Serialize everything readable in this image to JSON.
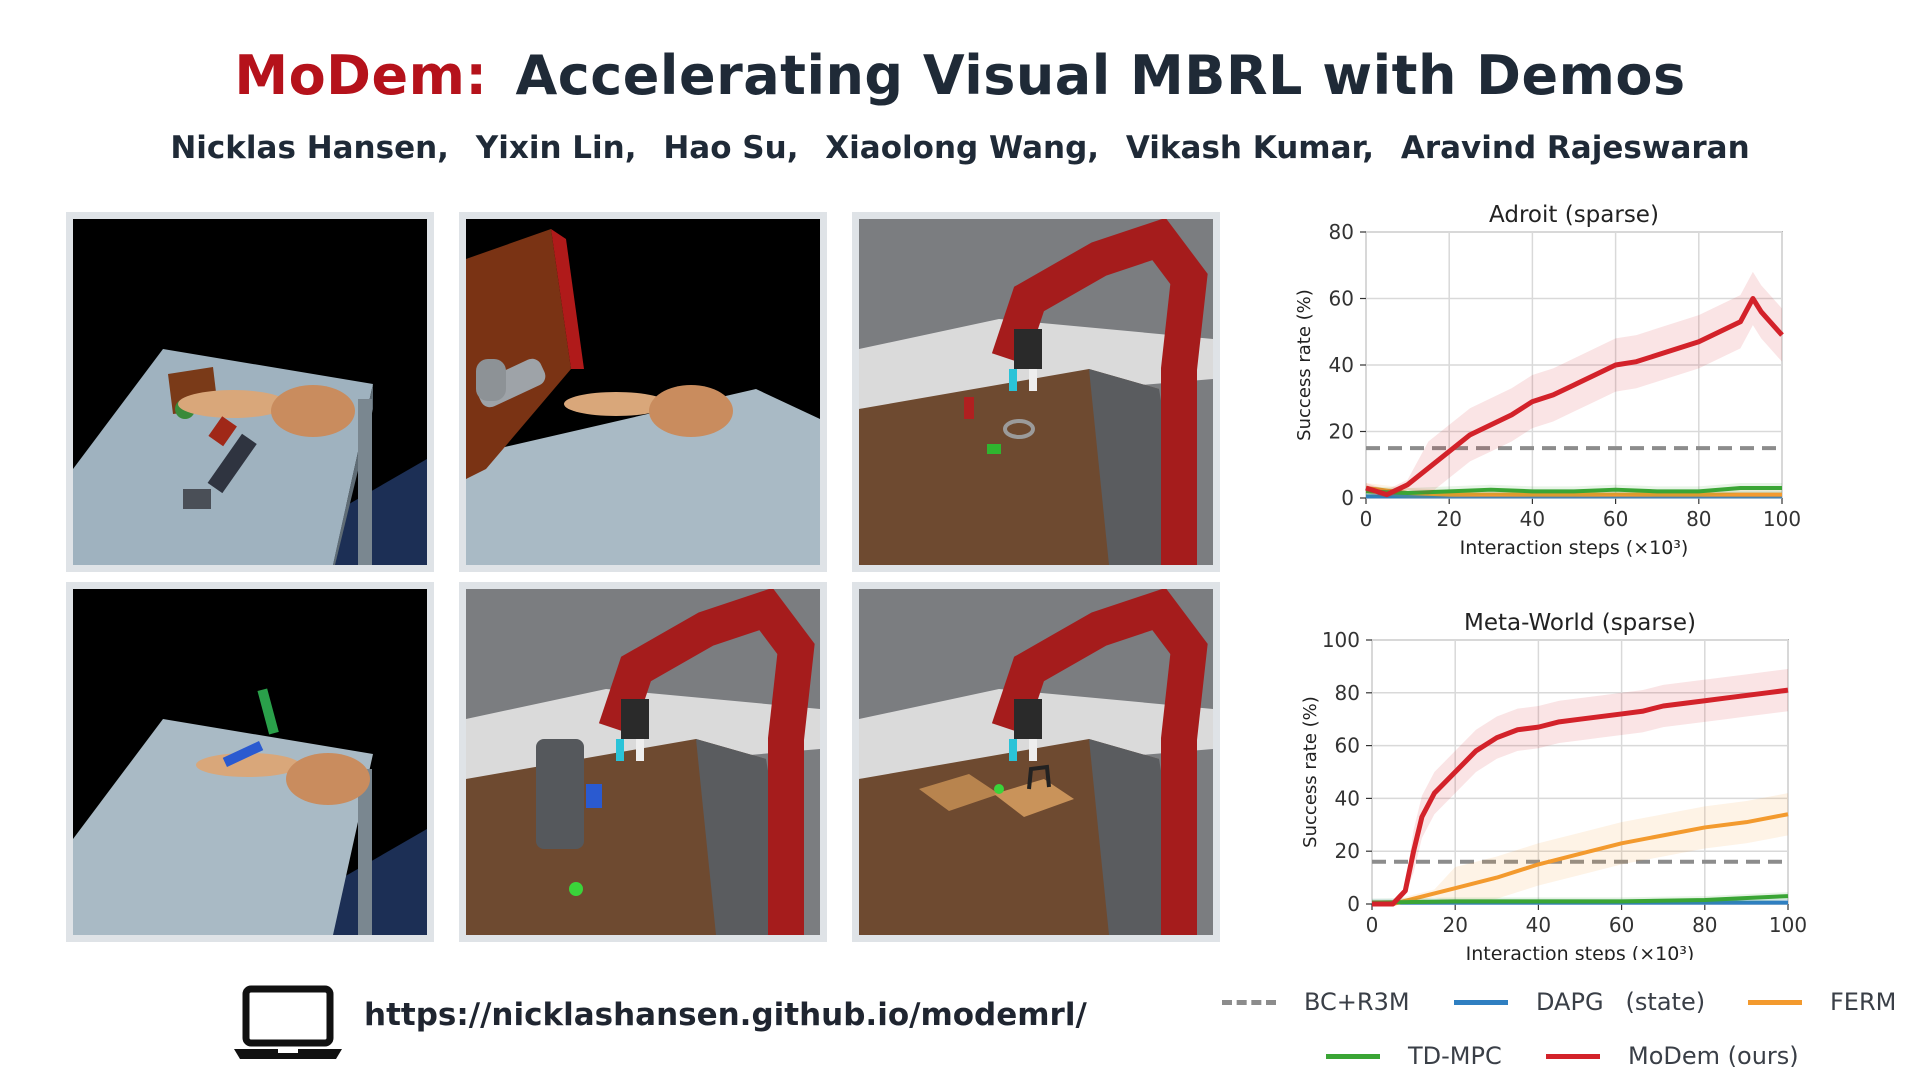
{
  "title": {
    "brand": "MoDem:",
    "rest": "Accelerating Visual MBRL with Demos"
  },
  "authors": [
    "Nicklas Hansen,",
    "Yixin Lin,",
    "Hao Su,",
    "Xiaolong Wang,",
    "Vikash Kumar,",
    "Aravind Rajeswaran"
  ],
  "link": {
    "url": "https://nicklashansen.github.io/modemrl/",
    "icon": "laptop-icon"
  },
  "legend": [
    {
      "label": "BC+R3M",
      "color": "#8c8c8c",
      "dash": true
    },
    {
      "label": "DAPG",
      "color": "#2f7fc1",
      "dash": false,
      "suffix": "(state)"
    },
    {
      "label": "FERM",
      "color": "#f39a2e",
      "dash": false
    },
    {
      "label": "TD-MPC",
      "color": "#3aa535",
      "dash": false
    },
    {
      "label": "MoDem (ours)",
      "color": "#d3222a",
      "dash": false
    }
  ],
  "tiles": [
    {
      "scene": "adroit-hammer"
    },
    {
      "scene": "adroit-door"
    },
    {
      "scene": "metaworld-peg"
    },
    {
      "scene": "adroit-pen"
    },
    {
      "scene": "metaworld-coffee"
    },
    {
      "scene": "metaworld-bin"
    }
  ],
  "chart_data": [
    {
      "type": "line",
      "title": "Adroit (sparse)",
      "xlabel": "Interaction steps (×10³)",
      "ylabel": "Success rate (%)",
      "xlim": [
        0,
        100
      ],
      "ylim": [
        0,
        80
      ],
      "xticks": [
        0,
        20,
        40,
        60,
        80,
        100
      ],
      "yticks": [
        0,
        20,
        40,
        60,
        80
      ],
      "grid": true,
      "series": [
        {
          "name": "BC+R3M",
          "x": [
            0,
            100
          ],
          "y": [
            15,
            15
          ],
          "color": "#8c8c8c",
          "dash": true
        },
        {
          "name": "DAPG",
          "x": [
            0,
            100
          ],
          "y": [
            0.5,
            0.5
          ],
          "color": "#2f7fc1"
        },
        {
          "name": "FERM",
          "x": [
            0,
            10,
            20,
            40,
            60,
            80,
            100
          ],
          "y": [
            3,
            1.5,
            1,
            1,
            1,
            1,
            1
          ],
          "color": "#f39a2e"
        },
        {
          "name": "TD-MPC",
          "x": [
            0,
            10,
            20,
            30,
            40,
            50,
            60,
            70,
            80,
            90,
            100
          ],
          "y": [
            2,
            1.5,
            2,
            2.5,
            2,
            2,
            2.5,
            2,
            2,
            3,
            3
          ],
          "color": "#3aa535"
        },
        {
          "name": "MoDem (ours)",
          "x": [
            0,
            5,
            10,
            15,
            20,
            25,
            30,
            35,
            40,
            45,
            50,
            55,
            60,
            65,
            70,
            75,
            80,
            85,
            90,
            93,
            95,
            100
          ],
          "y": [
            3,
            1,
            4,
            9,
            14,
            19,
            22,
            25,
            29,
            31,
            34,
            37,
            40,
            41,
            43,
            45,
            47,
            50,
            53,
            60,
            56,
            49
          ],
          "color": "#d3222a"
        }
      ]
    },
    {
      "type": "line",
      "title": "Meta-World (sparse)",
      "xlabel": "Interaction steps (×10³)",
      "ylabel": "Success rate (%)",
      "xlim": [
        0,
        100
      ],
      "ylim": [
        0,
        100
      ],
      "xticks": [
        0,
        20,
        40,
        60,
        80,
        100
      ],
      "yticks": [
        0,
        20,
        40,
        60,
        80,
        100
      ],
      "grid": true,
      "series": [
        {
          "name": "BC+R3M",
          "x": [
            0,
            100
          ],
          "y": [
            16,
            16
          ],
          "color": "#8c8c8c",
          "dash": true
        },
        {
          "name": "DAPG",
          "x": [
            0,
            100
          ],
          "y": [
            0.5,
            0.5
          ],
          "color": "#2f7fc1"
        },
        {
          "name": "FERM",
          "x": [
            0,
            5,
            10,
            15,
            20,
            30,
            40,
            50,
            60,
            70,
            80,
            90,
            100
          ],
          "y": [
            0,
            0,
            2,
            4,
            6,
            10,
            15,
            19,
            23,
            26,
            29,
            31,
            34
          ],
          "color": "#f39a2e"
        },
        {
          "name": "TD-MPC",
          "x": [
            0,
            20,
            40,
            60,
            80,
            100
          ],
          "y": [
            0.5,
            1,
            1,
            1,
            1.5,
            3
          ],
          "color": "#3aa535"
        },
        {
          "name": "MoDem (ours)",
          "x": [
            0,
            5,
            8,
            10,
            12,
            15,
            20,
            25,
            30,
            35,
            40,
            45,
            50,
            55,
            60,
            65,
            70,
            75,
            80,
            85,
            90,
            95,
            100
          ],
          "y": [
            0,
            0,
            5,
            20,
            33,
            42,
            50,
            58,
            63,
            66,
            67,
            69,
            70,
            71,
            72,
            73,
            75,
            76,
            77,
            78,
            79,
            80,
            81
          ],
          "color": "#d3222a"
        }
      ]
    }
  ]
}
